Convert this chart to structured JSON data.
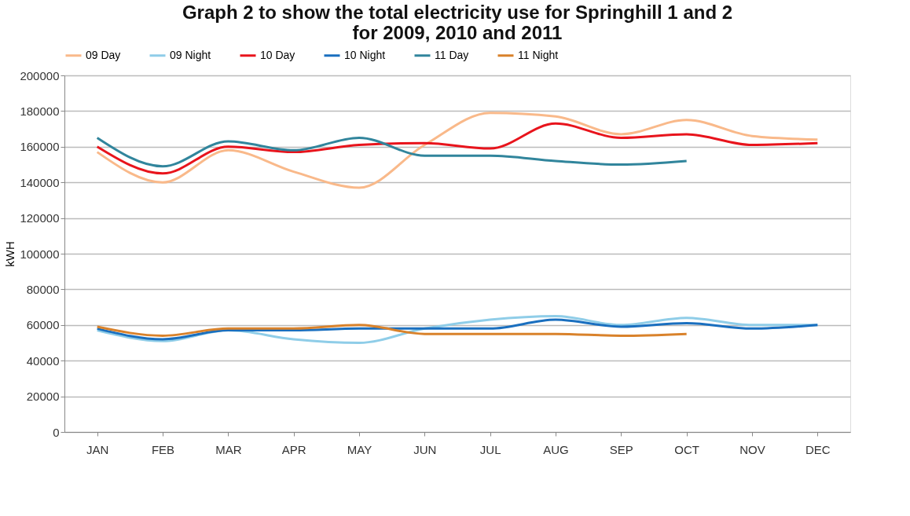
{
  "chart_data": {
    "type": "line",
    "title": [
      "Graph 2 to show the total electricity use for Springhill 1 and 2",
      "for 2009, 2010 and 2011"
    ],
    "ylabel": "kWH",
    "categories": [
      "JAN",
      "FEB",
      "MAR",
      "APR",
      "MAY",
      "JUN",
      "JUL",
      "AUG",
      "SEP",
      "OCT",
      "NOV",
      "DEC"
    ],
    "series": [
      {
        "name": "09 Day",
        "color": "#f9b98a",
        "values": [
          157000,
          140000,
          158000,
          146000,
          137000,
          161000,
          179000,
          177000,
          167000,
          175000,
          166000,
          164000
        ]
      },
      {
        "name": "09 Night",
        "color": "#8fcde8",
        "values": [
          57000,
          51000,
          57000,
          52000,
          50000,
          58000,
          63000,
          65000,
          60000,
          64000,
          60000,
          60000
        ]
      },
      {
        "name": "10 Day",
        "color": "#e8141c",
        "values": [
          160000,
          145000,
          160000,
          157000,
          161000,
          162000,
          159000,
          173000,
          165000,
          167000,
          161000,
          162000
        ]
      },
      {
        "name": "10 Night",
        "color": "#1a6fbf",
        "values": [
          58000,
          52000,
          57000,
          57000,
          58000,
          58000,
          58000,
          63000,
          59000,
          61000,
          58000,
          60000
        ]
      },
      {
        "name": "11 Day",
        "color": "#31859c",
        "values": [
          165000,
          149000,
          163000,
          158000,
          165000,
          155000,
          155000,
          152000,
          150000,
          152000,
          null,
          null
        ]
      },
      {
        "name": "11 Night",
        "color": "#d9822b",
        "values": [
          59000,
          54000,
          58000,
          58000,
          60000,
          55000,
          55000,
          55000,
          54000,
          55000,
          null,
          null
        ]
      }
    ],
    "ylim": [
      0,
      200000
    ],
    "yticks": [
      0,
      20000,
      40000,
      60000,
      80000,
      100000,
      120000,
      140000,
      160000,
      180000,
      200000
    ],
    "grid": "y",
    "legend": "top",
    "marker": "none",
    "line_style": "solid"
  }
}
